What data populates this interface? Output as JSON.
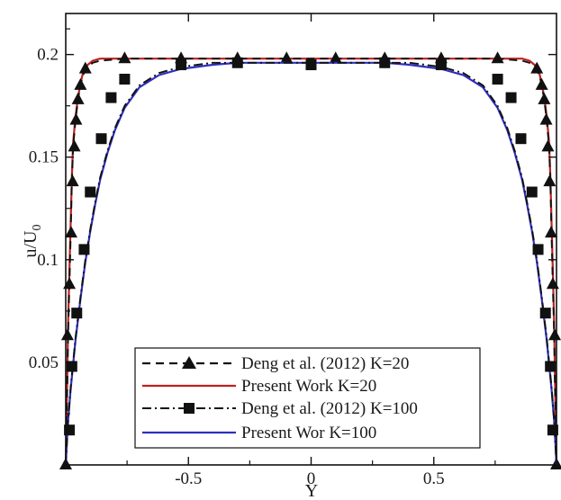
{
  "chart_data": {
    "type": "line",
    "xlabel": "Y",
    "ylabel_main": "u/U",
    "ylabel_sub": "0",
    "xlim": [
      -1,
      1
    ],
    "ylim": [
      0,
      0.22
    ],
    "x_ticks": [
      -0.5,
      0,
      0.5
    ],
    "x_tick_labels": [
      "-0.5",
      "0",
      "0.5"
    ],
    "y_ticks": [
      0.05,
      0.1,
      0.15,
      0.2
    ],
    "y_tick_labels": [
      "0.05",
      "0.1",
      "0.15",
      "0.2"
    ],
    "grid": false,
    "legend_position": "bottom-center",
    "series": [
      {
        "name": "Deng et al. (2012) K=20",
        "style": "dashed",
        "marker": "triangle",
        "color": "#111111",
        "x": [
          -1,
          -0.995,
          -0.99,
          -0.985,
          -0.98,
          -0.975,
          -0.97,
          -0.96,
          -0.95,
          -0.94,
          -0.93,
          -0.91,
          -0.89,
          -0.86,
          -0.76,
          -0.53,
          -0.3,
          -0.2,
          0,
          0.2,
          0.3,
          0.53,
          0.76,
          0.86,
          0.89,
          0.91,
          0.93,
          0.94,
          0.95,
          0.96,
          0.97,
          0.975,
          0.98,
          0.985,
          0.99,
          0.995,
          1
        ],
        "y": [
          0,
          0.03,
          0.065,
          0.088,
          0.112,
          0.138,
          0.155,
          0.168,
          0.178,
          0.185,
          0.19,
          0.194,
          0.196,
          0.197,
          0.198,
          0.198,
          0.198,
          0.198,
          0.198,
          0.198,
          0.198,
          0.198,
          0.198,
          0.197,
          0.196,
          0.194,
          0.19,
          0.185,
          0.178,
          0.168,
          0.155,
          0.138,
          0.112,
          0.088,
          0.065,
          0.03,
          0
        ],
        "marker_x": [
          -1,
          -0.993,
          -0.985,
          -0.978,
          -0.972,
          -0.965,
          -0.958,
          -0.95,
          -0.94,
          -0.92,
          -0.76,
          -0.53,
          -0.3,
          -0.1,
          0.1,
          0.3,
          0.53,
          0.76,
          0.92,
          0.94,
          0.95,
          0.958,
          0.965,
          0.972,
          0.978,
          0.985,
          0.993,
          1
        ],
        "marker_y": [
          0,
          0.063,
          0.088,
          0.113,
          0.138,
          0.155,
          0.168,
          0.178,
          0.185,
          0.193,
          0.198,
          0.198,
          0.198,
          0.198,
          0.198,
          0.198,
          0.198,
          0.198,
          0.193,
          0.185,
          0.178,
          0.168,
          0.155,
          0.138,
          0.113,
          0.088,
          0.063,
          0
        ]
      },
      {
        "name": "Present Work K=20",
        "style": "solid",
        "marker": "none",
        "color": "#c02020",
        "x": [
          -1,
          -0.995,
          -0.99,
          -0.985,
          -0.98,
          -0.975,
          -0.97,
          -0.96,
          -0.95,
          -0.94,
          -0.93,
          -0.91,
          -0.89,
          -0.86,
          -0.76,
          -0.5,
          0,
          0.5,
          0.76,
          0.86,
          0.89,
          0.91,
          0.93,
          0.94,
          0.95,
          0.96,
          0.97,
          0.975,
          0.98,
          0.985,
          0.99,
          0.995,
          1
        ],
        "y": [
          0,
          0.035,
          0.07,
          0.095,
          0.118,
          0.14,
          0.157,
          0.17,
          0.179,
          0.186,
          0.191,
          0.195,
          0.197,
          0.198,
          0.198,
          0.198,
          0.198,
          0.198,
          0.198,
          0.198,
          0.197,
          0.195,
          0.191,
          0.186,
          0.179,
          0.17,
          0.157,
          0.14,
          0.118,
          0.095,
          0.07,
          0.035,
          0
        ]
      },
      {
        "name": "Deng et al. (2012) K=100",
        "style": "dashdot",
        "marker": "square",
        "color": "#111111",
        "x": [
          -1,
          -0.995,
          -0.99,
          -0.98,
          -0.97,
          -0.96,
          -0.94,
          -0.92,
          -0.9,
          -0.88,
          -0.86,
          -0.83,
          -0.8,
          -0.76,
          -0.7,
          -0.62,
          -0.53,
          -0.4,
          -0.3,
          0,
          0.3,
          0.4,
          0.53,
          0.62,
          0.7,
          0.76,
          0.8,
          0.83,
          0.86,
          0.88,
          0.9,
          0.92,
          0.94,
          0.96,
          0.97,
          0.98,
          0.99,
          0.995,
          1
        ],
        "y": [
          0,
          0.012,
          0.022,
          0.038,
          0.05,
          0.062,
          0.082,
          0.1,
          0.115,
          0.128,
          0.14,
          0.153,
          0.164,
          0.175,
          0.185,
          0.191,
          0.194,
          0.196,
          0.196,
          0.196,
          0.196,
          0.196,
          0.194,
          0.191,
          0.185,
          0.175,
          0.164,
          0.153,
          0.14,
          0.128,
          0.115,
          0.1,
          0.082,
          0.062,
          0.05,
          0.038,
          0.022,
          0.012,
          0
        ],
        "marker_x": [
          -0.985,
          -0.975,
          -0.955,
          -0.925,
          -0.9,
          -0.855,
          -0.815,
          -0.76,
          -0.53,
          -0.3,
          0,
          0.3,
          0.53,
          0.76,
          0.815,
          0.855,
          0.9,
          0.925,
          0.955,
          0.975,
          0.985
        ],
        "marker_y": [
          0.017,
          0.048,
          0.074,
          0.105,
          0.133,
          0.159,
          0.179,
          0.188,
          0.195,
          0.196,
          0.195,
          0.196,
          0.195,
          0.188,
          0.179,
          0.159,
          0.133,
          0.105,
          0.074,
          0.048,
          0.017
        ]
      },
      {
        "name": "Present Wor K=100",
        "style": "solid",
        "marker": "none",
        "color": "#2e2fc0",
        "x": [
          -1,
          -0.995,
          -0.99,
          -0.98,
          -0.97,
          -0.96,
          -0.94,
          -0.92,
          -0.9,
          -0.88,
          -0.86,
          -0.83,
          -0.8,
          -0.76,
          -0.7,
          -0.62,
          -0.53,
          -0.4,
          -0.3,
          0,
          0.3,
          0.4,
          0.53,
          0.62,
          0.7,
          0.76,
          0.8,
          0.83,
          0.86,
          0.88,
          0.9,
          0.92,
          0.94,
          0.96,
          0.97,
          0.98,
          0.99,
          0.995,
          1
        ],
        "y": [
          0,
          0.012,
          0.022,
          0.037,
          0.049,
          0.061,
          0.081,
          0.099,
          0.114,
          0.127,
          0.139,
          0.152,
          0.163,
          0.174,
          0.184,
          0.19,
          0.193,
          0.195,
          0.196,
          0.196,
          0.196,
          0.195,
          0.193,
          0.19,
          0.184,
          0.174,
          0.163,
          0.152,
          0.139,
          0.127,
          0.114,
          0.099,
          0.081,
          0.061,
          0.049,
          0.037,
          0.022,
          0.012,
          0
        ]
      }
    ]
  }
}
